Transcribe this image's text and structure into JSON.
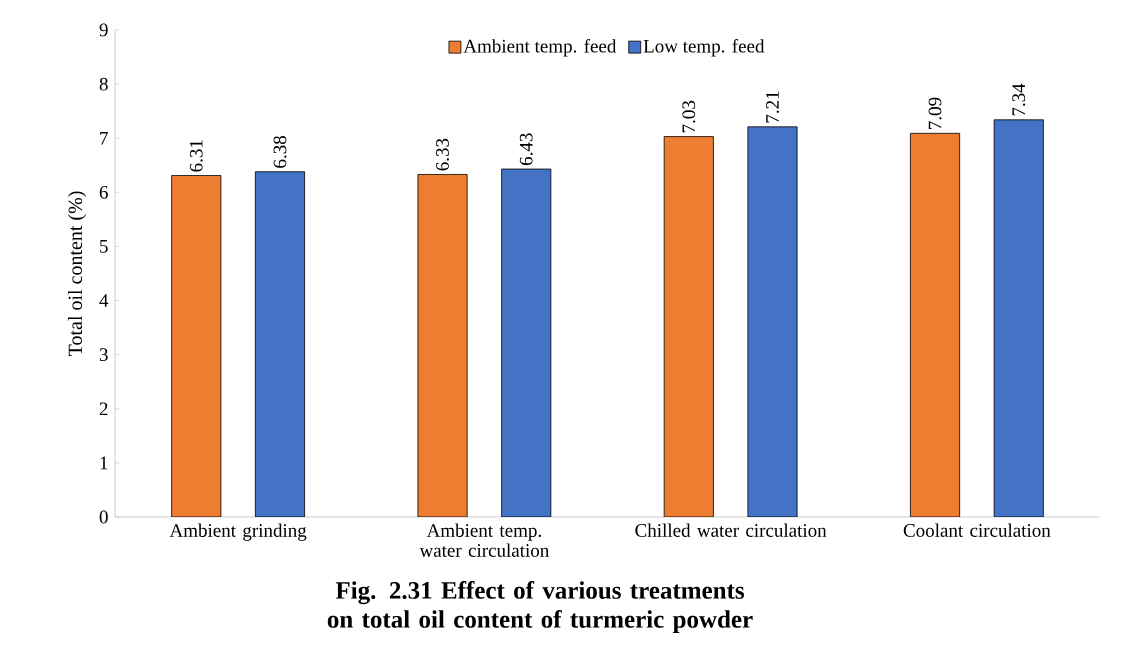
{
  "chart_data": {
    "type": "bar",
    "title": "Fig. 2.31 Effect of various treatments on total oil content of turmeric powder",
    "ylabel": "Total oil content (%)",
    "categories": [
      "Ambient grinding",
      "Ambient temp. water circulation",
      "Chilled water circulation",
      "Coolant circulation"
    ],
    "series": [
      {
        "name": "Ambient temp. feed",
        "color": "#ed7d31",
        "values": [
          6.31,
          6.33,
          7.03,
          7.09
        ]
      },
      {
        "name": "Low temp. feed",
        "color": "#4472c4",
        "values": [
          6.38,
          6.43,
          7.21,
          7.34
        ]
      }
    ],
    "ylim": [
      0,
      9
    ],
    "yticks": [
      0,
      1,
      2,
      3,
      4,
      5,
      6,
      7,
      8,
      9
    ],
    "grid": false,
    "legend": "top",
    "data_labels": true
  }
}
